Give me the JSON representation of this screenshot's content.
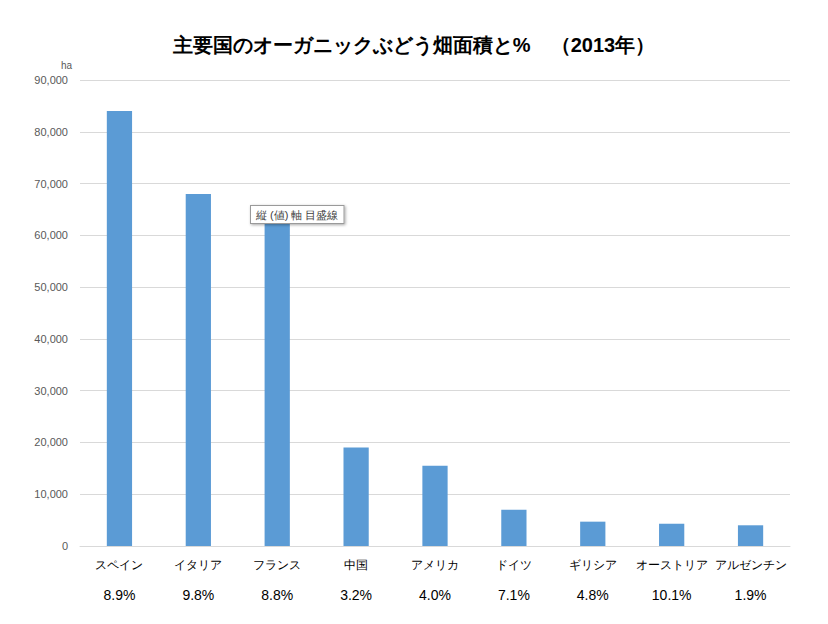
{
  "chart_data": {
    "type": "bar",
    "title": "主要国のオーガニックぶどう畑面積と%　（2013年）",
    "y_label": "ha",
    "categories": [
      "スペイン",
      "イタリア",
      "フランス",
      "中国",
      "アメリカ",
      "ドイツ",
      "ギリシア",
      "オーストリア",
      "アルゼンチン"
    ],
    "values": [
      84000,
      68000,
      64000,
      19000,
      15500,
      7000,
      4700,
      4300,
      4000
    ],
    "category_notes": [
      "8.9%",
      "9.8%",
      "8.8%",
      "3.2%",
      "4.0%",
      "7.1%",
      "4.8%",
      "10.1%",
      "1.9%"
    ],
    "color": "#5b9bd5",
    "ylim": [
      0,
      90000
    ],
    "yticks": [
      0,
      {
        "value": 10000,
        "label": "10,000"
      },
      {
        "value": 20000,
        "label": "20,000"
      },
      {
        "value": 30000,
        "label": "30,000"
      },
      {
        "value": 40000,
        "label": "40,000"
      },
      {
        "value": 50000,
        "label": "50,000"
      },
      {
        "value": 60000,
        "label": "60,000"
      },
      {
        "value": 70000,
        "label": "70,000"
      },
      {
        "value": 80000,
        "label": "80,000"
      },
      {
        "value": 90000,
        "label": "90,000"
      }
    ],
    "annotation": "縦 (値) 軸 目盛線",
    "grid": true
  }
}
